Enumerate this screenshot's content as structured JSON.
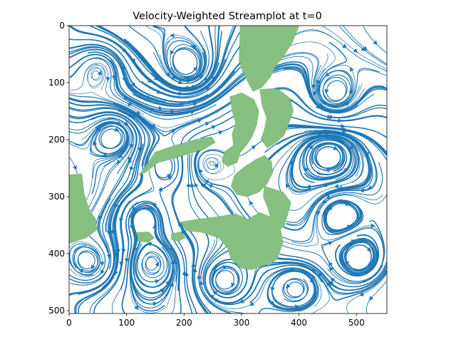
{
  "chart_data": {
    "type": "streamplot",
    "title": "Velocity-Weighted Streamplot at t=0",
    "xlabel": "",
    "ylabel": "",
    "xlim": [
      0,
      553
    ],
    "ylim": [
      505,
      0
    ],
    "x_ticks": [
      0,
      100,
      200,
      300,
      400,
      500
    ],
    "y_ticks": [
      0,
      100,
      200,
      300,
      400,
      500
    ],
    "stream_color": "#1f77b4",
    "land_color": "#86bf80",
    "land_regions": [
      {
        "name": "northern-island",
        "points": [
          [
            298,
            0
          ],
          [
            400,
            0
          ],
          [
            388,
            30
          ],
          [
            372,
            55
          ],
          [
            360,
            70
          ],
          [
            350,
            90
          ],
          [
            336,
            108
          ],
          [
            320,
            115
          ],
          [
            312,
            100
          ],
          [
            302,
            80
          ],
          [
            296,
            62
          ]
        ]
      },
      {
        "name": "central-island-west",
        "points": [
          [
            280,
            125
          ],
          [
            300,
            118
          ],
          [
            322,
            130
          ],
          [
            330,
            150
          ],
          [
            326,
            175
          ],
          [
            318,
            195
          ],
          [
            310,
            208
          ],
          [
            298,
            222
          ],
          [
            292,
            240
          ],
          [
            276,
            247
          ],
          [
            266,
            238
          ],
          [
            270,
            222
          ],
          [
            286,
            210
          ],
          [
            284,
            190
          ],
          [
            290,
            170
          ],
          [
            284,
            150
          ]
        ]
      },
      {
        "name": "central-cluster-east",
        "points": [
          [
            332,
            112
          ],
          [
            362,
            110
          ],
          [
            385,
            128
          ],
          [
            390,
            150
          ],
          [
            382,
            172
          ],
          [
            374,
            192
          ],
          [
            360,
            205
          ],
          [
            345,
            214
          ],
          [
            334,
            200
          ],
          [
            340,
            182
          ],
          [
            344,
            162
          ],
          [
            336,
            140
          ]
        ]
      },
      {
        "name": "central-island-south",
        "points": [
          [
            288,
            262
          ],
          [
            305,
            248
          ],
          [
            325,
            235
          ],
          [
            340,
            228
          ],
          [
            352,
            238
          ],
          [
            354,
            258
          ],
          [
            344,
            278
          ],
          [
            330,
            292
          ],
          [
            310,
            300
          ],
          [
            292,
            296
          ],
          [
            282,
            282
          ]
        ]
      },
      {
        "name": "long-island-southwest",
        "points": [
          [
            122,
            262
          ],
          [
            150,
            222
          ],
          [
            185,
            210
          ],
          [
            220,
            200
          ],
          [
            248,
            195
          ],
          [
            254,
            205
          ],
          [
            232,
            218
          ],
          [
            210,
            224
          ],
          [
            185,
            232
          ],
          [
            155,
            240
          ],
          [
            132,
            258
          ]
        ]
      },
      {
        "name": "southeast-island",
        "points": [
          [
            340,
            282
          ],
          [
            372,
            292
          ],
          [
            386,
            310
          ],
          [
            380,
            332
          ],
          [
            374,
            352
          ],
          [
            360,
            362
          ],
          [
            352,
            342
          ],
          [
            346,
            320
          ],
          [
            338,
            300
          ]
        ]
      },
      {
        "name": "southern-large-island",
        "points": [
          [
            192,
            345
          ],
          [
            222,
            340
          ],
          [
            262,
            335
          ],
          [
            290,
            330
          ],
          [
            310,
            340
          ],
          [
            332,
            328
          ],
          [
            356,
            338
          ],
          [
            368,
            358
          ],
          [
            372,
            380
          ],
          [
            362,
            410
          ],
          [
            342,
            420
          ],
          [
            318,
            428
          ],
          [
            300,
            426
          ],
          [
            282,
            410
          ],
          [
            276,
            390
          ],
          [
            260,
            372
          ],
          [
            230,
            362
          ],
          [
            205,
            360
          ]
        ]
      },
      {
        "name": "western-landmass",
        "points": [
          [
            0,
            262
          ],
          [
            22,
            260
          ],
          [
            26,
            295
          ],
          [
            34,
            320
          ],
          [
            46,
            340
          ],
          [
            48,
            358
          ],
          [
            30,
            372
          ],
          [
            0,
            382
          ]
        ]
      },
      {
        "name": "small-islet-west",
        "points": [
          [
            118,
            363
          ],
          [
            138,
            362
          ],
          [
            148,
            372
          ],
          [
            138,
            380
          ],
          [
            120,
            378
          ]
        ]
      },
      {
        "name": "small-islet-mid",
        "points": [
          [
            178,
            365
          ],
          [
            196,
            362
          ],
          [
            202,
            372
          ],
          [
            190,
            378
          ],
          [
            178,
            375
          ]
        ]
      }
    ],
    "vortices": [
      {
        "name": "nw-eddy",
        "center": [
          55,
          70
        ],
        "radius": 32,
        "strength": 1.0
      },
      {
        "name": "north-eddy",
        "center": [
          210,
          80
        ],
        "radius": 34,
        "strength": -1.0
      },
      {
        "name": "west-eddy",
        "center": [
          80,
          185
        ],
        "radius": 30,
        "strength": 1.0
      },
      {
        "name": "left-mid-eddy",
        "center": [
          170,
          250
        ],
        "radius": 28,
        "strength": -1.0
      },
      {
        "name": "centre-left-eddy",
        "center": [
          240,
          240
        ],
        "radius": 25,
        "strength": 1.0
      },
      {
        "name": "east-eddy",
        "center": [
          460,
          130
        ],
        "radius": 35,
        "strength": -1.2
      },
      {
        "name": "east-mid-eddy",
        "center": [
          455,
          220
        ],
        "radius": 30,
        "strength": 1.0
      },
      {
        "name": "sw-eddy-1",
        "center": [
          130,
          335
        ],
        "radius": 30,
        "strength": -1.0
      },
      {
        "name": "sw-eddy-2",
        "center": [
          265,
          450
        ],
        "radius": 32,
        "strength": 1.2
      },
      {
        "name": "south-eddy",
        "center": [
          145,
          415
        ],
        "radius": 26,
        "strength": -1.0
      },
      {
        "name": "se-eddy",
        "center": [
          510,
          410
        ],
        "radius": 30,
        "strength": 1.2
      },
      {
        "name": "far-west-eddy",
        "center": [
          40,
          420
        ],
        "radius": 30,
        "strength": 1.0
      },
      {
        "name": "east-low-eddy",
        "center": [
          470,
          330
        ],
        "radius": 30,
        "strength": -0.9
      },
      {
        "name": "south-centre-eddy",
        "center": [
          395,
          460
        ],
        "radius": 25,
        "strength": -1.0
      }
    ]
  }
}
